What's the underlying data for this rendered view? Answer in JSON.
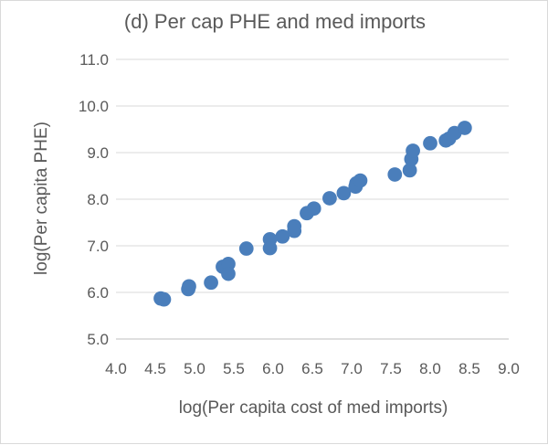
{
  "chart_data": {
    "type": "scatter",
    "title": "(d) Per cap PHE and med imports",
    "xlabel": "log(Per capita cost of med imports)",
    "ylabel": "log(Per capita PHE)",
    "xlim": [
      4.0,
      9.0
    ],
    "ylim": [
      5.0,
      11.0
    ],
    "xticks": [
      "4.0",
      "4.5",
      "5.0",
      "5.5",
      "6.0",
      "6.5",
      "7.0",
      "7.5",
      "8.0",
      "8.5",
      "9.0"
    ],
    "yticks": [
      "5.0",
      "6.0",
      "7.0",
      "8.0",
      "9.0",
      "10.0",
      "11.0"
    ],
    "grid": "horizontal",
    "legend": "none",
    "marker_color": "#4a7ebb",
    "points": [
      {
        "x": 4.57,
        "y": 5.87
      },
      {
        "x": 4.61,
        "y": 5.85
      },
      {
        "x": 4.92,
        "y": 6.07
      },
      {
        "x": 4.93,
        "y": 6.13
      },
      {
        "x": 5.21,
        "y": 6.21
      },
      {
        "x": 5.36,
        "y": 6.55
      },
      {
        "x": 5.43,
        "y": 6.61
      },
      {
        "x": 5.43,
        "y": 6.4
      },
      {
        "x": 5.66,
        "y": 6.94
      },
      {
        "x": 5.96,
        "y": 7.14
      },
      {
        "x": 5.96,
        "y": 6.95
      },
      {
        "x": 6.12,
        "y": 7.2
      },
      {
        "x": 6.27,
        "y": 7.42
      },
      {
        "x": 6.27,
        "y": 7.32
      },
      {
        "x": 6.43,
        "y": 7.7
      },
      {
        "x": 6.52,
        "y": 7.8
      },
      {
        "x": 6.72,
        "y": 8.02
      },
      {
        "x": 6.9,
        "y": 8.13
      },
      {
        "x": 7.05,
        "y": 8.27
      },
      {
        "x": 7.06,
        "y": 8.34
      },
      {
        "x": 7.11,
        "y": 8.4
      },
      {
        "x": 7.55,
        "y": 8.53
      },
      {
        "x": 7.74,
        "y": 8.62
      },
      {
        "x": 7.76,
        "y": 8.86
      },
      {
        "x": 7.78,
        "y": 9.04
      },
      {
        "x": 8.0,
        "y": 9.2
      },
      {
        "x": 8.2,
        "y": 9.26
      },
      {
        "x": 8.24,
        "y": 9.3
      },
      {
        "x": 8.31,
        "y": 9.42
      },
      {
        "x": 8.44,
        "y": 9.53
      }
    ]
  }
}
